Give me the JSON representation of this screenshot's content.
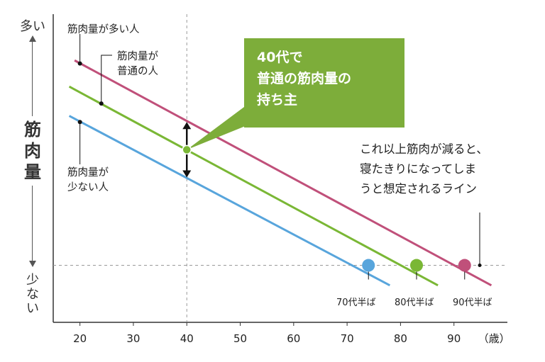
{
  "y_axis": {
    "top": "多い",
    "middle": "筋肉量",
    "bottom": "少ない"
  },
  "callouts": {
    "high": "筋肉量が多い人",
    "normal_line1": "筋肉量が",
    "normal_line2": "普通の人",
    "low_line1": "筋肉量が",
    "low_line2": "少ない人"
  },
  "bubble": {
    "line1": "40代で",
    "line2": "普通の筋肉量の",
    "line3": "持ち主"
  },
  "threshold_note": {
    "line1": "これ以上筋肉が減ると、",
    "line2": "寝たきりになってしま",
    "line3": "うと想定されるライン"
  },
  "colors": {
    "high": "#c0507a",
    "normal": "#7ab735",
    "low": "#58a5dc",
    "bubble": "#7dad3a"
  },
  "chart_data": {
    "type": "line",
    "xlabel": "（歳）",
    "ylabel": "筋肉量",
    "xlim": [
      15,
      100
    ],
    "ylim": [
      0,
      100
    ],
    "x_ticks": [
      20,
      30,
      40,
      50,
      60,
      70,
      80,
      90
    ],
    "reference_lines": {
      "vertical_x": 40,
      "horizontal_y": 18.5
    },
    "series": [
      {
        "name": "筋肉量が多い人",
        "color": "#c0507a",
        "x": [
          19,
          97
        ],
        "y": [
          85,
          12
        ],
        "marker": {
          "x": 20,
          "y": 84
        }
      },
      {
        "name": "筋肉量が普通の人",
        "color": "#7ab735",
        "x": [
          18,
          87
        ],
        "y": [
          76.5,
          12
        ],
        "marker": {
          "x": 24,
          "y": 71
        }
      },
      {
        "name": "筋肉量が少ない人",
        "color": "#58a5dc",
        "x": [
          18,
          78
        ],
        "y": [
          67,
          12
        ],
        "marker": {
          "x": 20,
          "y": 65
        }
      }
    ],
    "highlight_point": {
      "x": 40,
      "y": 56,
      "color": "#7ab735"
    },
    "range_arrow": {
      "x": 40,
      "y_from": 65,
      "y_to": 47
    },
    "crossing_points": [
      {
        "x": 74,
        "y": 18.5,
        "color": "#58a5dc",
        "label": "70代半ば"
      },
      {
        "x": 83,
        "y": 18.5,
        "color": "#7ab735",
        "label": "80代半ば"
      },
      {
        "x": 92,
        "y": 18.5,
        "color": "#c0507a",
        "label": "90代半ば"
      }
    ]
  }
}
